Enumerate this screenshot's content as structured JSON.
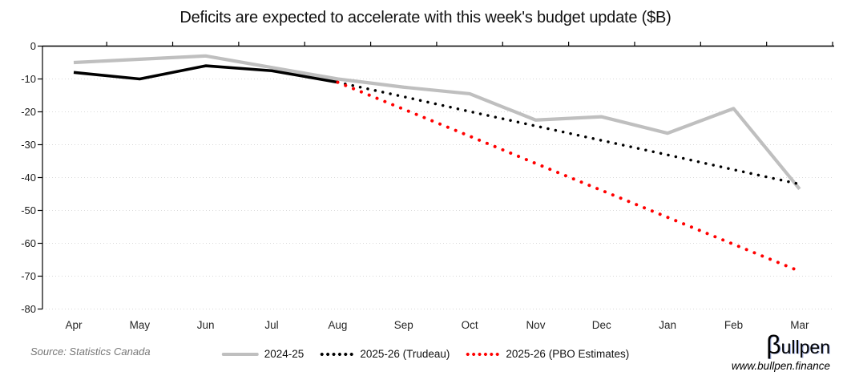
{
  "chart_data": {
    "type": "line",
    "title": "Deficits are expected to accelerate with this week's budget update ($B)",
    "xlabel": "",
    "ylabel": "",
    "categories": [
      "Apr",
      "May",
      "Jun",
      "Jul",
      "Aug",
      "Sep",
      "Oct",
      "Nov",
      "Dec",
      "Jan",
      "Feb",
      "Mar"
    ],
    "y_ticks": [
      "0",
      "-10",
      "-20",
      "-30",
      "-40",
      "-50",
      "-60",
      "-70",
      "-80"
    ],
    "ylim": [
      0,
      -80
    ],
    "grid": true,
    "gridline_color": "#d9d9d9",
    "legend_position": "bottom",
    "series": [
      {
        "id": "2024-25",
        "name": "2024-25",
        "style": "solid",
        "color": "#bfbfbf",
        "width": 4.2,
        "values": [
          -5,
          -4,
          -3,
          -6.5,
          -10,
          -12.5,
          -14.5,
          -22.5,
          -21.5,
          -26.5,
          -19,
          -43.5
        ]
      },
      {
        "id": "2025-26-actual",
        "name": "2025-26 actual (solid portion)",
        "style": "solid",
        "color": "#000000",
        "width": 3.6,
        "values": [
          -8,
          -10,
          -6,
          -7.5,
          -11,
          null,
          null,
          null,
          null,
          null,
          null,
          null
        ]
      },
      {
        "id": "2025-26-trudeau",
        "name": "2025-26 (Trudeau)",
        "style": "dotted",
        "color": "#000000",
        "width": 3.5,
        "dot_gap": 9.5,
        "values": [
          null,
          null,
          null,
          null,
          -11,
          -15.4,
          -19.9,
          -24.3,
          -28.7,
          -33.1,
          -37.6,
          -42
        ]
      },
      {
        "id": "2025-26-pbo",
        "name": "2025-26 (PBO Estimates)",
        "style": "dotted",
        "color": "#ff0000",
        "width": 4,
        "dot_gap": 10.5,
        "values": [
          null,
          null,
          null,
          null,
          -11,
          -19.2,
          -27.4,
          -35.7,
          -43.9,
          -52.1,
          -60.3,
          -68.5
        ]
      }
    ],
    "legend": [
      {
        "label": "2024-25",
        "style": "solid",
        "color": "#bfbfbf"
      },
      {
        "label": "2025-26 (Trudeau)",
        "style": "dotted",
        "color": "#000000"
      },
      {
        "label": "2025-26 (PBO Estimates)",
        "style": "dotted",
        "color": "#ff0000"
      }
    ]
  },
  "footer": {
    "source": "Source: Statistics Canada",
    "brand_beta": "β",
    "brand_rest": "ullpen",
    "brand_url": "www.bullpen.finance"
  },
  "colors": {
    "background": "#ffffff",
    "axis": "#000000",
    "gridline": "#d9d9d9",
    "source_text": "#767676"
  }
}
